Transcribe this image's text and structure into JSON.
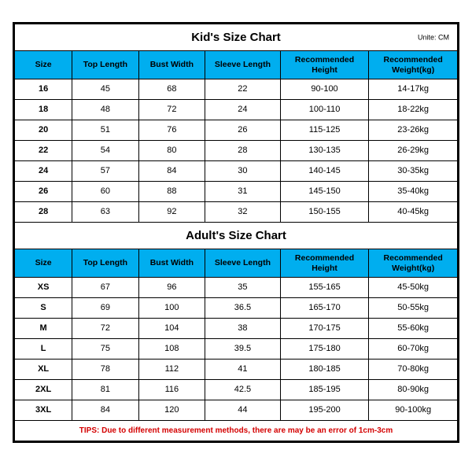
{
  "kids": {
    "title": "Kid's Size Chart",
    "unite": "Unite: CM",
    "columns": [
      "Size",
      "Top Length",
      "Bust Width",
      "Sleeve Length",
      "Recommended Height",
      "Recommended Weight(kg)"
    ],
    "rows": [
      [
        "16",
        "45",
        "68",
        "22",
        "90-100",
        "14-17kg"
      ],
      [
        "18",
        "48",
        "72",
        "24",
        "100-110",
        "18-22kg"
      ],
      [
        "20",
        "51",
        "76",
        "26",
        "115-125",
        "23-26kg"
      ],
      [
        "22",
        "54",
        "80",
        "28",
        "130-135",
        "26-29kg"
      ],
      [
        "24",
        "57",
        "84",
        "30",
        "140-145",
        "30-35kg"
      ],
      [
        "26",
        "60",
        "88",
        "31",
        "145-150",
        "35-40kg"
      ],
      [
        "28",
        "63",
        "92",
        "32",
        "150-155",
        "40-45kg"
      ]
    ]
  },
  "adults": {
    "title": "Adult's Size Chart",
    "columns": [
      "Size",
      "Top Length",
      "Bust Width",
      "Sleeve Length",
      "Recommended Height",
      "Recommended Weight(kg)"
    ],
    "rows": [
      [
        "XS",
        "67",
        "96",
        "35",
        "155-165",
        "45-50kg"
      ],
      [
        "S",
        "69",
        "100",
        "36.5",
        "165-170",
        "50-55kg"
      ],
      [
        "M",
        "72",
        "104",
        "38",
        "170-175",
        "55-60kg"
      ],
      [
        "L",
        "75",
        "108",
        "39.5",
        "175-180",
        "60-70kg"
      ],
      [
        "XL",
        "78",
        "112",
        "41",
        "180-185",
        "70-80kg"
      ],
      [
        "2XL",
        "81",
        "116",
        "42.5",
        "185-195",
        "80-90kg"
      ],
      [
        "3XL",
        "84",
        "120",
        "44",
        "195-200",
        "90-100kg"
      ]
    ]
  },
  "tips": "TIPS: Due to different measurement methods, there are may be an error of 1cm-3cm"
}
